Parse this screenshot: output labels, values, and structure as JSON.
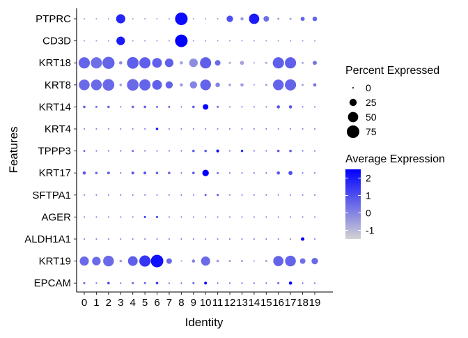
{
  "chart_data": {
    "type": "dotplot",
    "xlabel": "Identity",
    "ylabel": "Features",
    "identities": [
      "0",
      "1",
      "2",
      "3",
      "4",
      "5",
      "6",
      "7",
      "8",
      "9",
      "10",
      "11",
      "12",
      "13",
      "14",
      "15",
      "16",
      "17",
      "18",
      "19"
    ],
    "features": [
      "EPCAM",
      "KRT19",
      "ALDH1A1",
      "AGER",
      "KRT17",
      "SFTPA1",
      "KRT17",
      "TPPP3",
      "KRT4",
      "KRT14",
      "KRT8",
      "KRT18",
      "CD3D",
      "PTPRC"
    ],
    "legend_size": {
      "title": "Percent Expressed",
      "breaks": [
        0,
        25,
        50,
        75
      ],
      "labels": [
        "0",
        "25",
        "50",
        "75"
      ]
    },
    "legend_color": {
      "title": "Average Expression",
      "breaks": [
        2,
        1,
        0,
        -1
      ],
      "labels": [
        "2",
        "1",
        "0",
        "-1"
      ],
      "range": [
        -1.5,
        2.5
      ],
      "low_color": "#d3d3d3",
      "high_color": "#0000ff"
    },
    "series": [
      {
        "feature": "PTPRC",
        "pct": [
          1,
          1,
          1,
          40,
          1,
          1,
          1,
          1,
          75,
          1,
          1,
          1,
          20,
          5,
          50,
          15,
          2,
          2,
          8,
          10
        ],
        "avg": [
          -0.5,
          -0.5,
          -0.5,
          1.8,
          -0.5,
          -0.5,
          -0.5,
          -0.5,
          2.3,
          -0.5,
          -0.5,
          -0.5,
          1.0,
          -0.5,
          2.0,
          0.4,
          -0.5,
          -0.5,
          0.6,
          0.6
        ]
      },
      {
        "feature": "CD3D",
        "pct": [
          1,
          1,
          1,
          35,
          1,
          1,
          1,
          1,
          75,
          1,
          1,
          1,
          1,
          1,
          1,
          1,
          1,
          1,
          1,
          1
        ],
        "avg": [
          -0.5,
          -0.5,
          -0.5,
          2.0,
          -0.5,
          -0.5,
          -0.5,
          -0.5,
          2.5,
          -0.5,
          -0.5,
          -0.5,
          -0.5,
          -0.5,
          -0.5,
          -0.5,
          -0.5,
          -0.5,
          -0.5,
          -0.5
        ]
      },
      {
        "feature": "KRT18",
        "pct": [
          60,
          60,
          70,
          5,
          65,
          60,
          45,
          35,
          5,
          35,
          60,
          15,
          2,
          8,
          1,
          2,
          60,
          60,
          2,
          8
        ],
        "avg": [
          0.6,
          0.4,
          0.6,
          -0.2,
          0.7,
          0.7,
          0.7,
          0.7,
          -0.6,
          -0.2,
          0.7,
          0.5,
          -0.6,
          -0.6,
          -0.6,
          -0.6,
          0.7,
          0.7,
          -0.6,
          0.3
        ]
      },
      {
        "feature": "KRT8",
        "pct": [
          55,
          55,
          65,
          3,
          65,
          60,
          45,
          25,
          5,
          25,
          55,
          10,
          3,
          5,
          1,
          2,
          55,
          60,
          2,
          5
        ],
        "avg": [
          0.5,
          0.5,
          0.5,
          -0.5,
          0.5,
          0.6,
          0.7,
          0.6,
          -0.5,
          0.0,
          0.6,
          0.0,
          -0.5,
          -0.5,
          -0.5,
          -0.5,
          0.6,
          0.6,
          -0.5,
          0.3
        ]
      },
      {
        "feature": "KRT14",
        "pct": [
          3,
          2,
          3,
          1,
          3,
          3,
          2,
          2,
          1,
          3,
          15,
          2,
          1,
          1,
          1,
          1,
          5,
          5,
          1,
          1
        ],
        "avg": [
          0.7,
          0.5,
          0.5,
          0.5,
          0.5,
          0.7,
          0.5,
          0.5,
          0.5,
          0.7,
          2.4,
          0.5,
          0.5,
          0.5,
          0.5,
          0.5,
          0.8,
          0.8,
          0.5,
          0.5
        ]
      },
      {
        "feature": "KRT4",
        "pct": [
          1,
          1,
          1,
          1,
          1,
          1,
          3,
          1,
          1,
          1,
          1,
          1,
          1,
          1,
          1,
          1,
          1,
          1,
          1,
          1
        ],
        "avg": [
          0.3,
          0.3,
          0.3,
          0.3,
          0.3,
          0.3,
          2.0,
          0.3,
          0.3,
          0.3,
          0.3,
          0.3,
          0.3,
          0.3,
          0.3,
          0.3,
          0.3,
          0.3,
          0.3,
          0.3
        ]
      },
      {
        "feature": "TPPP3",
        "pct": [
          2,
          1,
          1,
          1,
          2,
          1,
          1,
          1,
          1,
          3,
          3,
          4,
          1,
          3,
          1,
          1,
          3,
          3,
          1,
          1
        ],
        "avg": [
          0.5,
          0.5,
          0.5,
          0.5,
          0.5,
          0.5,
          0.5,
          0.5,
          0.5,
          0.7,
          0.7,
          2.2,
          0.5,
          1.5,
          0.5,
          0.5,
          0.7,
          0.7,
          0.5,
          0.5
        ]
      },
      {
        "feature": "KRT17",
        "pct": [
          5,
          3,
          4,
          1,
          4,
          4,
          3,
          3,
          1,
          3,
          20,
          2,
          1,
          1,
          1,
          1,
          5,
          8,
          1,
          1
        ],
        "avg": [
          0.8,
          0.5,
          0.6,
          0.5,
          0.8,
          0.8,
          0.6,
          0.6,
          0.5,
          0.8,
          2.5,
          0.5,
          0.5,
          0.5,
          0.5,
          0.5,
          0.8,
          1.0,
          0.5,
          0.5
        ]
      },
      {
        "feature": "SFTPA1",
        "pct": [
          1,
          1,
          1,
          1,
          1,
          1,
          1,
          1,
          1,
          1,
          2,
          2,
          1,
          1,
          1,
          1,
          1,
          1,
          1,
          1
        ],
        "avg": [
          0.3,
          0.3,
          0.3,
          0.3,
          0.3,
          0.3,
          0.3,
          0.3,
          0.3,
          0.3,
          1.0,
          1.0,
          0.3,
          0.3,
          0.3,
          0.3,
          0.3,
          0.3,
          0.3,
          0.3
        ]
      },
      {
        "feature": "AGER",
        "pct": [
          1,
          1,
          1,
          1,
          1,
          2,
          2,
          1,
          1,
          1,
          1,
          1,
          1,
          1,
          1,
          1,
          1,
          1,
          1,
          1
        ],
        "avg": [
          0.3,
          0.3,
          0.3,
          0.3,
          0.3,
          1.5,
          1.5,
          0.3,
          0.3,
          0.3,
          0.3,
          0.3,
          0.3,
          0.3,
          0.3,
          0.3,
          0.3,
          0.3,
          0.3,
          0.3
        ]
      },
      {
        "feature": "ALDH1A1",
        "pct": [
          1,
          1,
          1,
          1,
          1,
          1,
          1,
          1,
          1,
          1,
          1,
          1,
          1,
          1,
          1,
          1,
          1,
          1,
          6,
          1
        ],
        "avg": [
          0.3,
          0.3,
          0.3,
          0.3,
          0.3,
          0.3,
          0.3,
          0.3,
          0.3,
          0.3,
          0.3,
          0.3,
          0.3,
          0.3,
          0.3,
          0.3,
          0.3,
          0.3,
          2.5,
          0.3
        ]
      },
      {
        "feature": "KRT19",
        "pct": [
          40,
          35,
          55,
          3,
          45,
          60,
          75,
          15,
          1,
          5,
          40,
          3,
          2,
          2,
          1,
          2,
          50,
          55,
          15,
          20
        ],
        "avg": [
          0.5,
          0.5,
          0.5,
          -0.5,
          0.7,
          1.5,
          2.2,
          0.5,
          -0.5,
          0.0,
          0.5,
          -0.5,
          -0.5,
          -0.5,
          -0.5,
          -0.5,
          0.6,
          0.6,
          0.4,
          0.5
        ]
      },
      {
        "feature": "EPCAM",
        "pct": [
          2,
          1,
          3,
          1,
          2,
          2,
          3,
          1,
          1,
          2,
          4,
          1,
          1,
          1,
          1,
          1,
          2,
          5,
          1,
          1
        ],
        "avg": [
          0.7,
          0.5,
          1.2,
          0.5,
          0.7,
          0.7,
          1.5,
          0.5,
          0.5,
          0.7,
          2.3,
          0.5,
          0.5,
          0.5,
          0.5,
          0.5,
          0.7,
          2.5,
          0.5,
          0.5
        ]
      }
    ]
  }
}
